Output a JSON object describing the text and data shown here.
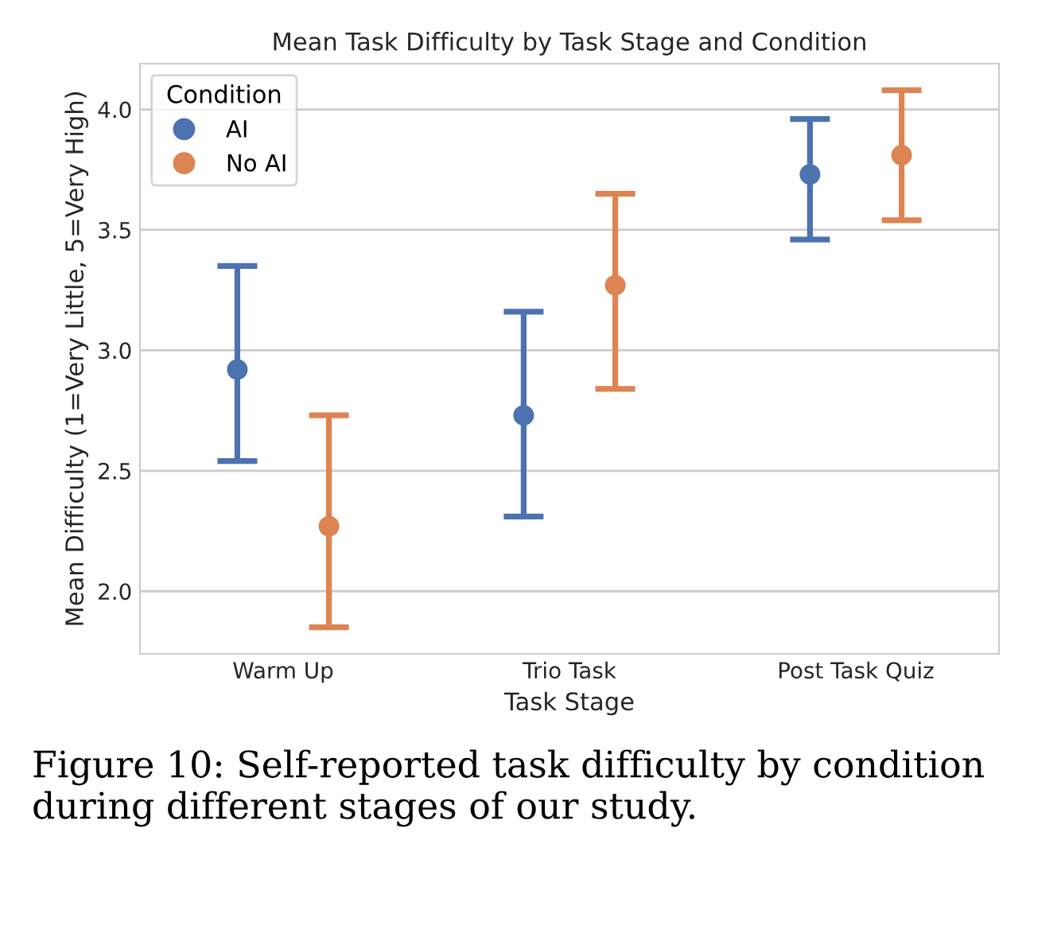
{
  "chart_data": {
    "type": "scatter",
    "title": "Mean Task Difficulty by Task Stage and Condition",
    "xlabel": "Task Stage",
    "ylabel": "Mean Difficulty (1=Very Little, 5=Very High)",
    "legend_title": "Condition",
    "categories": [
      "Warm Up",
      "Trio Task",
      "Post Task Quiz"
    ],
    "series": [
      {
        "name": "AI",
        "color": "#4c72b0",
        "values": [
          2.92,
          2.73,
          3.73
        ],
        "errors": [
          [
            2.54,
            3.35
          ],
          [
            2.31,
            3.16
          ],
          [
            3.46,
            3.96
          ]
        ]
      },
      {
        "name": "No AI",
        "color": "#dd8452",
        "values": [
          2.27,
          3.27,
          3.81
        ],
        "errors": [
          [
            1.85,
            2.73
          ],
          [
            2.84,
            3.65
          ],
          [
            3.54,
            4.08
          ]
        ]
      }
    ],
    "ylim": [
      1.74,
      4.19
    ],
    "yticks": [
      {
        "value": 2,
        "label": "2.0"
      },
      2.5,
      {
        "value": 3,
        "label": "3.0"
      },
      3.5,
      {
        "value": 4,
        "label": "4.0"
      }
    ],
    "grid": "y",
    "legend": "top left",
    "marker": "circle",
    "annotations": [
      "Figure 10: Self-reported task difficulty by condition during different stages of our study."
    ]
  }
}
